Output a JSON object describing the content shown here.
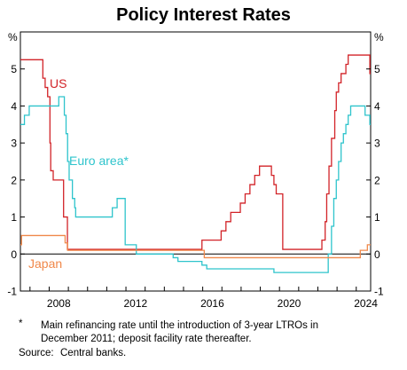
{
  "chart_data": {
    "type": "line",
    "title": "Policy Interest Rates",
    "y_unit_left": "%",
    "y_unit_right": "%",
    "ylim": [
      -1,
      6
    ],
    "yticks": [
      -1,
      0,
      1,
      2,
      3,
      4,
      5
    ],
    "xlim": [
      2006.5,
      2024.75
    ],
    "xticks": [
      2008,
      2012,
      2016,
      2020,
      2024
    ],
    "grid": false,
    "colors": {
      "US": "#d22328",
      "Euro area*": "#2ec4cc",
      "Japan": "#f0884a",
      "axes": "#000000",
      "zero_line": "#000000"
    },
    "series": [
      {
        "name": "US",
        "step": true,
        "points": [
          [
            2006.5,
            5.25
          ],
          [
            2007.67,
            4.75
          ],
          [
            2007.79,
            4.5
          ],
          [
            2007.92,
            4.25
          ],
          [
            2008.04,
            3.0
          ],
          [
            2008.08,
            2.25
          ],
          [
            2008.21,
            2.0
          ],
          [
            2008.75,
            1.0
          ],
          [
            2008.95,
            0.125
          ],
          [
            2015.96,
            0.375
          ],
          [
            2016.96,
            0.625
          ],
          [
            2017.21,
            0.875
          ],
          [
            2017.46,
            1.125
          ],
          [
            2017.96,
            1.375
          ],
          [
            2018.21,
            1.625
          ],
          [
            2018.46,
            1.875
          ],
          [
            2018.71,
            2.125
          ],
          [
            2018.96,
            2.375
          ],
          [
            2019.58,
            2.125
          ],
          [
            2019.71,
            1.875
          ],
          [
            2019.83,
            1.625
          ],
          [
            2020.17,
            0.125
          ],
          [
            2022.21,
            0.375
          ],
          [
            2022.38,
            0.875
          ],
          [
            2022.46,
            1.625
          ],
          [
            2022.58,
            2.375
          ],
          [
            2022.71,
            3.125
          ],
          [
            2022.88,
            3.875
          ],
          [
            2022.96,
            4.375
          ],
          [
            2023.08,
            4.625
          ],
          [
            2023.21,
            4.875
          ],
          [
            2023.46,
            5.125
          ],
          [
            2023.58,
            5.375
          ],
          [
            2024.71,
            4.875
          ],
          [
            2024.75,
            4.875
          ]
        ]
      },
      {
        "name": "Euro area*",
        "step": true,
        "points": [
          [
            2006.5,
            3.5
          ],
          [
            2006.71,
            3.75
          ],
          [
            2006.96,
            4.0
          ],
          [
            2008.5,
            4.25
          ],
          [
            2008.79,
            3.75
          ],
          [
            2008.88,
            3.25
          ],
          [
            2008.96,
            2.5
          ],
          [
            2009.04,
            2.0
          ],
          [
            2009.21,
            1.5
          ],
          [
            2009.33,
            1.25
          ],
          [
            2009.38,
            1.0
          ],
          [
            2011.29,
            1.25
          ],
          [
            2011.54,
            1.5
          ],
          [
            2011.96,
            0.25
          ],
          [
            2012.54,
            0.0
          ],
          [
            2014.46,
            -0.1
          ],
          [
            2014.71,
            -0.2
          ],
          [
            2015.96,
            -0.3
          ],
          [
            2016.21,
            -0.4
          ],
          [
            2019.71,
            -0.5
          ],
          [
            2022.54,
            0.0
          ],
          [
            2022.71,
            0.75
          ],
          [
            2022.83,
            1.5
          ],
          [
            2022.96,
            2.0
          ],
          [
            2023.08,
            2.5
          ],
          [
            2023.21,
            3.0
          ],
          [
            2023.33,
            3.25
          ],
          [
            2023.46,
            3.5
          ],
          [
            2023.58,
            3.75
          ],
          [
            2023.71,
            4.0
          ],
          [
            2024.46,
            3.75
          ],
          [
            2024.71,
            3.5
          ],
          [
            2024.75,
            3.5
          ]
        ]
      },
      {
        "name": "Japan",
        "step": true,
        "points": [
          [
            2006.5,
            0.25
          ],
          [
            2006.56,
            0.5
          ],
          [
            2008.83,
            0.3
          ],
          [
            2008.96,
            0.1
          ],
          [
            2016.08,
            -0.1
          ],
          [
            2024.21,
            0.1
          ],
          [
            2024.58,
            0.25
          ],
          [
            2024.75,
            0.25
          ]
        ]
      }
    ],
    "series_labels": [
      {
        "text": "US",
        "series": "US"
      },
      {
        "text": "Euro area*",
        "series": "Euro area*"
      },
      {
        "text": "Japan",
        "series": "Japan"
      }
    ]
  },
  "footnote": {
    "marker": "*",
    "text": "Main refinancing rate until the introduction of 3-year LTROs in December 2011; deposit facility rate thereafter."
  },
  "source": {
    "label": "Source:",
    "text": "Central banks."
  }
}
